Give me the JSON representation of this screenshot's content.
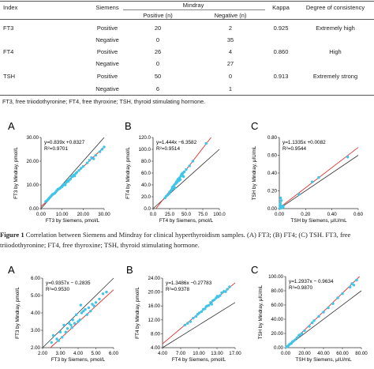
{
  "table": {
    "headers": {
      "index": "Index",
      "siemens": "Siemens",
      "mindray": "Mindray",
      "positive": "Positive (n)",
      "negative": "Negative (n)",
      "kappa": "Kappa",
      "consistency": "Degree of consistency"
    },
    "rows": [
      {
        "index": "FT3",
        "siemens": "Positive",
        "pos": "20",
        "neg": "2",
        "kappa": "0.925",
        "consistency": "Extremely high"
      },
      {
        "index": "",
        "siemens": "Negative",
        "pos": "0",
        "neg": "35",
        "kappa": "",
        "consistency": ""
      },
      {
        "index": "FT4",
        "siemens": "Positive",
        "pos": "26",
        "neg": "4",
        "kappa": "0.860",
        "consistency": "High"
      },
      {
        "index": "",
        "siemens": "Negative",
        "pos": "0",
        "neg": "27",
        "kappa": "",
        "consistency": ""
      },
      {
        "index": "TSH",
        "siemens": "Positive",
        "pos": "50",
        "neg": "0",
        "kappa": "0.913",
        "consistency": "Extremely strong"
      },
      {
        "index": "",
        "siemens": "Negative",
        "pos": "6",
        "neg": "1",
        "kappa": "",
        "consistency": ""
      }
    ],
    "footnote": "FT3, free triiodothyronine; FT4, free thyroxine; TSH, thyroid stimulating hormone."
  },
  "caption": {
    "label": "Figure 1",
    "text": " Correlation between Siemens and Mindray for clinical hyperthyroidism samples. (A) FT3; (B) FT4; (C) TSH. FT3, free",
    "line2": "triiodothyronine; FT4, free thyroxine; TSH, thyroid stimulating hormone."
  },
  "colors": {
    "points": "#3ec5e8",
    "fit": "#e0302c",
    "identity": "#333333"
  },
  "chart_data": [
    {
      "type": "scatter",
      "panel": "A",
      "equation": "y=0.839x +0.8327",
      "r2": "R²=0.9701",
      "xlabel": "FT3 by Siemens, pmol/L",
      "ylabel": "FT3 by Mindray, pmol/L",
      "xlim": [
        0,
        30
      ],
      "ylim": [
        0,
        30
      ],
      "xticks": [
        "0.00",
        "10.00",
        "20.00",
        "30.00"
      ],
      "yticks": [
        "0.00",
        "10.00",
        "20.00",
        "30.00"
      ],
      "fit": {
        "slope": 0.839,
        "intercept": 0.8327
      },
      "points": [
        [
          2.2,
          3
        ],
        [
          3,
          3.5
        ],
        [
          3.5,
          4
        ],
        [
          4,
          4.5
        ],
        [
          4.5,
          5
        ],
        [
          5,
          5.5
        ],
        [
          5.5,
          6
        ],
        [
          6,
          6.2
        ],
        [
          6.5,
          6.5
        ],
        [
          7,
          7
        ],
        [
          7.5,
          7.6
        ],
        [
          8,
          8.2
        ],
        [
          8.5,
          8.3
        ],
        [
          9,
          8.6
        ],
        [
          9.5,
          9
        ],
        [
          10,
          9.2
        ],
        [
          10.5,
          9.8
        ],
        [
          11,
          10.3
        ],
        [
          11.5,
          10
        ],
        [
          12,
          11
        ],
        [
          12.5,
          11.6
        ],
        [
          13,
          11.5
        ],
        [
          13.5,
          12.2
        ],
        [
          14,
          12.5
        ],
        [
          14.5,
          13.6
        ],
        [
          15,
          13.5
        ],
        [
          15.5,
          14.2
        ],
        [
          16,
          13.8
        ],
        [
          16.5,
          14.8
        ],
        [
          17,
          15.3
        ],
        [
          18,
          16.1
        ],
        [
          19,
          17
        ],
        [
          20,
          17.8
        ],
        [
          22,
          19.3
        ],
        [
          24,
          21.5
        ],
        [
          26,
          22.5
        ],
        [
          28,
          24
        ],
        [
          29,
          25
        ],
        [
          30,
          26
        ],
        [
          23,
          20.4
        ],
        [
          25,
          21
        ]
      ]
    },
    {
      "type": "scatter",
      "panel": "B",
      "equation": "y=1.444x −6.3582",
      "r2": "R²=0.9514",
      "xlabel": "FT4 by Siemens, pmol/L",
      "ylabel": "FT4 by Mindray, pmol/L",
      "xlim": [
        0,
        100
      ],
      "ylim": [
        0,
        120
      ],
      "xticks": [
        "0.0",
        "25.0",
        "50.0",
        "75.0",
        "100.0"
      ],
      "yticks": [
        "0.0",
        "20.0",
        "40.0",
        "60.0",
        "80.0",
        "100.0",
        "120.0"
      ],
      "fit": {
        "slope": 1.444,
        "intercept": -6.3582
      },
      "points": [
        [
          18,
          18
        ],
        [
          20,
          21
        ],
        [
          22,
          23
        ],
        [
          24,
          25
        ],
        [
          25,
          28
        ],
        [
          27,
          30
        ],
        [
          28,
          32
        ],
        [
          29,
          36
        ],
        [
          30,
          33
        ],
        [
          31,
          38
        ],
        [
          32,
          40
        ],
        [
          33,
          35
        ],
        [
          34,
          42
        ],
        [
          35,
          45
        ],
        [
          36,
          44
        ],
        [
          37,
          48
        ],
        [
          38,
          50
        ],
        [
          39,
          47
        ],
        [
          40,
          52
        ],
        [
          42,
          55
        ],
        [
          43,
          58
        ],
        [
          45,
          60
        ],
        [
          47,
          62
        ],
        [
          50,
          66
        ],
        [
          55,
          72
        ],
        [
          60,
          80
        ],
        [
          80,
          110
        ],
        [
          41,
          49
        ],
        [
          44,
          57
        ],
        [
          46,
          54
        ]
      ]
    },
    {
      "type": "scatter",
      "panel": "C",
      "equation": "y=1.1335x +0.0082",
      "r2": "R²=0.9544",
      "xlabel": "TSH by Siemens, μIU/mL",
      "ylabel": "TSH by Mindray, μIU/mL",
      "xlim": [
        0,
        0.6
      ],
      "ylim": [
        0,
        0.8
      ],
      "xticks": [
        "0.00",
        "0.20",
        "0.40",
        "0.60"
      ],
      "yticks": [
        "0.00",
        "0.20",
        "0.40",
        "0.60",
        "0.80"
      ],
      "fit": {
        "slope": 1.1335,
        "intercept": 0.0082
      },
      "points": [
        [
          0.005,
          0.005
        ],
        [
          0.008,
          0.01
        ],
        [
          0.01,
          0.008
        ],
        [
          0.012,
          0.015
        ],
        [
          0.015,
          0.012
        ],
        [
          0.02,
          0.02
        ],
        [
          0.01,
          0.03
        ],
        [
          0.005,
          0.04
        ],
        [
          0.008,
          0.06
        ],
        [
          0.012,
          0.005
        ],
        [
          0.018,
          0.025
        ],
        [
          0.02,
          0.01
        ],
        [
          0.025,
          0.03
        ],
        [
          0.03,
          0.02
        ],
        [
          0.15,
          0.16
        ],
        [
          0.25,
          0.3
        ],
        [
          0.3,
          0.35
        ],
        [
          0.52,
          0.58
        ],
        [
          0.015,
          0.09
        ],
        [
          0.01,
          0.12
        ]
      ]
    },
    {
      "type": "scatter",
      "panel": "A",
      "equation": "y=0.9357x − 0.2835",
      "r2": "R²=0.9530",
      "xlabel": "FT3 by Siemens, pmol/L",
      "ylabel": "FT3 by Mindray, pmol/L",
      "xlim": [
        2,
        6
      ],
      "ylim": [
        2,
        6
      ],
      "xticks": [
        "2.00",
        "3.00",
        "4.00",
        "5.00",
        "6.00"
      ],
      "yticks": [
        "2.00",
        "3.00",
        "4.00",
        "5.00",
        "6.00"
      ],
      "fit": {
        "slope": 0.9357,
        "intercept": -0.2835
      },
      "points": [
        [
          2.5,
          2.3
        ],
        [
          2.6,
          2.7
        ],
        [
          2.8,
          2.5
        ],
        [
          2.9,
          2.4
        ],
        [
          3,
          2.9
        ],
        [
          3.1,
          2.6
        ],
        [
          3.2,
          3.3
        ],
        [
          3.3,
          2.9
        ],
        [
          3.4,
          3.1
        ],
        [
          3.5,
          3.4
        ],
        [
          3.6,
          3.3
        ],
        [
          3.7,
          3.6
        ],
        [
          3.8,
          3.4
        ],
        [
          3.9,
          3.9
        ],
        [
          4,
          3.5
        ],
        [
          4.1,
          3.6
        ],
        [
          4.2,
          4
        ],
        [
          4.3,
          4.1
        ],
        [
          4.4,
          4.2
        ],
        [
          4.5,
          3.9
        ],
        [
          4.6,
          4.3
        ],
        [
          4.7,
          4.1
        ],
        [
          4.8,
          4.5
        ],
        [
          4.9,
          4.4
        ],
        [
          5,
          4.6
        ],
        [
          5.2,
          4.8
        ],
        [
          5.4,
          5.1
        ],
        [
          5.6,
          5.2
        ],
        [
          4.15,
          4.45
        ],
        [
          3.65,
          3.15
        ]
      ]
    },
    {
      "type": "scatter",
      "panel": "B",
      "equation": "y=1.3486x −0.27783",
      "r2": "R²=0.9378",
      "xlabel": "FT4 by Siemens, pmol/L",
      "ylabel": "FT4 by Mindray, pmol/L",
      "xlim": [
        4,
        17
      ],
      "ylim": [
        4,
        24
      ],
      "xticks": [
        "4.00",
        "7.00",
        "10.00",
        "13.00",
        "17.00"
      ],
      "yticks": [
        "4.00",
        "8.00",
        "12.00",
        "16.00",
        "20.00",
        "24.00"
      ],
      "fit": {
        "slope": 1.3486,
        "intercept": -0.27783
      },
      "points": [
        [
          8,
          10.5
        ],
        [
          8.5,
          11
        ],
        [
          9,
          11.5
        ],
        [
          9.5,
          12.5
        ],
        [
          10,
          13
        ],
        [
          10.3,
          13.6
        ],
        [
          10.6,
          14
        ],
        [
          11,
          14.4
        ],
        [
          11.3,
          15
        ],
        [
          11.6,
          15.2
        ],
        [
          12,
          16
        ],
        [
          12.3,
          16.2
        ],
        [
          12.6,
          17
        ],
        [
          13,
          17.5
        ],
        [
          13.3,
          17.8
        ],
        [
          13.6,
          18.3
        ],
        [
          14,
          18.6
        ],
        [
          14.3,
          19
        ],
        [
          14.6,
          19.8
        ],
        [
          15,
          20.2
        ],
        [
          15.3,
          20.1
        ],
        [
          15.6,
          20.8
        ],
        [
          16,
          21.5
        ],
        [
          11.8,
          15.8
        ],
        [
          12.8,
          16.5
        ],
        [
          13.8,
          18.8
        ]
      ]
    },
    {
      "type": "scatter",
      "panel": "C",
      "equation": "y=1.2937x − 0.9634",
      "r2": "R²=0.9870",
      "xlabel": "TSH by Siemens, μIU/mL",
      "ylabel": "TSH by Mindray, μIU/mL",
      "xlim": [
        0,
        80
      ],
      "ylim": [
        0,
        100
      ],
      "xticks": [
        "0.00",
        "20.00",
        "40.00",
        "60.00",
        "80.00"
      ],
      "yticks": [
        "0.00",
        "20.00",
        "40.00",
        "60.00",
        "80.00",
        "100.00"
      ],
      "fit": {
        "slope": 1.2937,
        "intercept": -0.9634
      },
      "points": [
        [
          1,
          1
        ],
        [
          2,
          2
        ],
        [
          3,
          3
        ],
        [
          4,
          4.5
        ],
        [
          5,
          5.5
        ],
        [
          6,
          6
        ],
        [
          7,
          8
        ],
        [
          8,
          9
        ],
        [
          10,
          11
        ],
        [
          12,
          14
        ],
        [
          14,
          17
        ],
        [
          15,
          18
        ],
        [
          17,
          20
        ],
        [
          20,
          24
        ],
        [
          25,
          30
        ],
        [
          28,
          35
        ],
        [
          30,
          38
        ],
        [
          35,
          44
        ],
        [
          40,
          50
        ],
        [
          45,
          56
        ],
        [
          50,
          62
        ],
        [
          55,
          70
        ],
        [
          60,
          76
        ],
        [
          68,
          85
        ],
        [
          70,
          90
        ],
        [
          72,
          88
        ],
        [
          75,
          95
        ]
      ]
    }
  ]
}
